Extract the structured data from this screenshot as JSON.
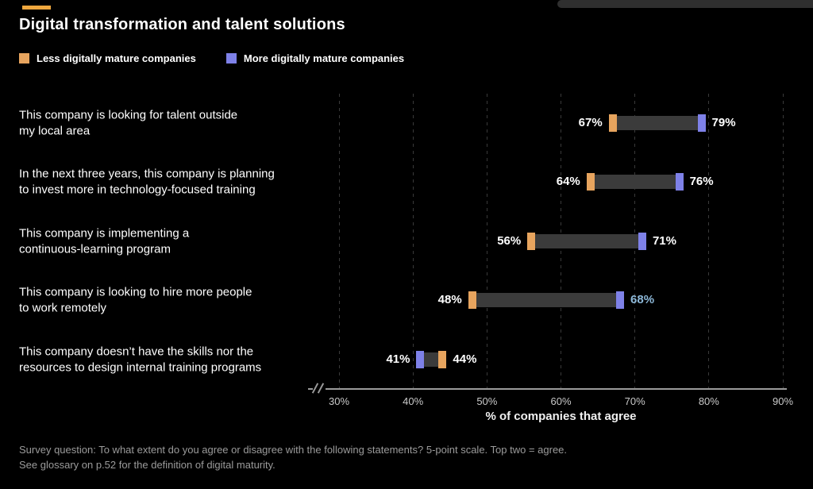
{
  "page": {
    "background": "#000000",
    "accent_bar_color": "#efa73e",
    "top_right_bar_color": "#2f2f2f"
  },
  "header": {
    "title": "Digital transformation and talent solutions"
  },
  "legend": [
    {
      "label": "Less digitally mature companies",
      "color": "#e7a45e"
    },
    {
      "label": "More digitally mature companies",
      "color": "#7e81e8"
    }
  ],
  "chart_data": {
    "type": "bar",
    "subtype": "dumbbell-range",
    "title": "Digital transformation and talent solutions",
    "categories": [
      [
        "This company is looking for talent outside",
        "my local area"
      ],
      [
        "In the next three years, this company is planning",
        "to invest more in technology-focused training"
      ],
      [
        "This company is implementing a",
        "continuous-learning program"
      ],
      [
        "This company is looking to hire more people",
        "to work remotely"
      ],
      [
        "This company doesn’t have the skills nor the",
        "resources to design internal training programs"
      ]
    ],
    "series": [
      {
        "name": "Less digitally mature companies",
        "color": "#e7a45e",
        "values": [
          67,
          64,
          56,
          48,
          44
        ]
      },
      {
        "name": "More digitally mature companies",
        "color": "#7e81e8",
        "values": [
          79,
          76,
          71,
          68,
          41
        ]
      }
    ],
    "xlim": [
      30,
      90
    ],
    "tick_values": [
      30,
      40,
      50,
      60,
      70,
      80,
      90
    ],
    "tick_labels": [
      "30%",
      "40%",
      "50%",
      "60%",
      "70%",
      "80%",
      "90%"
    ],
    "xlabel": "% of companies that agree",
    "axis_break": true,
    "grid": "dashed-vertical",
    "legend_position": "top-left",
    "connector_color": "#3b3b3b",
    "value_label_format": "{v}%",
    "highlight": {
      "row": 3,
      "side": "right",
      "color": "#8db8d8"
    }
  },
  "footer": {
    "line1": "Survey question: To what extent do you agree or disagree with the following statements? 5-point scale. Top two = agree.",
    "line2": "See glossary on p.52 for the definition of digital maturity."
  }
}
